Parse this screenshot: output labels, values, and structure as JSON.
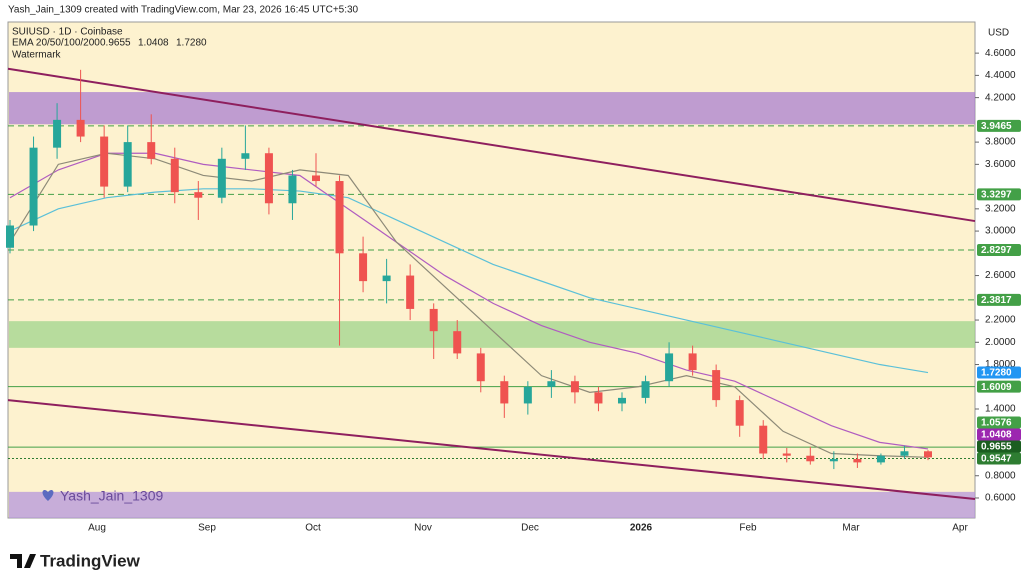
{
  "header": {
    "credit": "Yash_Jain_1309 created with TradingView.com, Mar 23, 2026 16:45 UTC+5:30",
    "logo": "TradingView"
  },
  "chart_data": {
    "type": "candlestick",
    "title": "SUIUSD · 1D · Coinbase",
    "subtitle": "Watermark",
    "currency": "USD",
    "watermark": "Yash_Jain_1309",
    "indicator": {
      "label": "EMA 20/50/100/200",
      "values": [
        "0.9655",
        "1.0408",
        "1.7280"
      ],
      "colors": [
        "#333333",
        "#9c27b0",
        "#26a6c8"
      ]
    },
    "up_color": "#26a69a",
    "down_color": "#ef5350",
    "xticks": [
      "Aug",
      "Sep",
      "Oct",
      "Nov",
      "Dec",
      "2026",
      "Feb",
      "Mar",
      "Apr"
    ],
    "ylim": [
      0.42,
      4.88
    ],
    "yticks": [
      {
        "value": 4.6,
        "label": "4.6000"
      },
      {
        "value": 4.4,
        "label": "4.4000"
      },
      {
        "value": 4.2,
        "label": "4.2000"
      },
      {
        "value": 3.8,
        "label": "3.8000"
      },
      {
        "value": 3.6,
        "label": "3.6000"
      },
      {
        "value": 3.2,
        "label": "3.2000"
      },
      {
        "value": 3.0,
        "label": "3.0000"
      },
      {
        "value": 2.6,
        "label": "2.6000"
      },
      {
        "value": 2.2,
        "label": "2.2000"
      },
      {
        "value": 2.0,
        "label": "2.0000"
      },
      {
        "value": 1.8,
        "label": "1.8000"
      },
      {
        "value": 1.4,
        "label": "1.4000"
      },
      {
        "value": 0.8,
        "label": "0.8000"
      },
      {
        "value": 0.6,
        "label": "0.6000"
      }
    ],
    "candles": [
      [
        2.85,
        3.1,
        2.8,
        3.05
      ],
      [
        3.05,
        3.85,
        3.0,
        3.75
      ],
      [
        3.75,
        4.15,
        3.65,
        4.0
      ],
      [
        4.0,
        4.45,
        3.8,
        3.85
      ],
      [
        3.85,
        3.95,
        3.3,
        3.4
      ],
      [
        3.4,
        3.95,
        3.35,
        3.8
      ],
      [
        3.8,
        4.05,
        3.6,
        3.65
      ],
      [
        3.65,
        3.75,
        3.25,
        3.35
      ],
      [
        3.35,
        3.45,
        3.1,
        3.3
      ],
      [
        3.3,
        3.75,
        3.25,
        3.65
      ],
      [
        3.65,
        3.95,
        3.55,
        3.7
      ],
      [
        3.7,
        3.75,
        3.15,
        3.25
      ],
      [
        3.25,
        3.55,
        3.1,
        3.5
      ],
      [
        3.5,
        3.7,
        3.4,
        3.45
      ],
      [
        3.45,
        3.5,
        1.97,
        2.8
      ],
      [
        2.8,
        2.95,
        2.45,
        2.55
      ],
      [
        2.55,
        2.75,
        2.35,
        2.6
      ],
      [
        2.6,
        2.7,
        2.2,
        2.3
      ],
      [
        2.3,
        2.35,
        1.85,
        2.1
      ],
      [
        2.1,
        2.2,
        1.85,
        1.9
      ],
      [
        1.9,
        1.95,
        1.55,
        1.65
      ],
      [
        1.65,
        1.7,
        1.32,
        1.45
      ],
      [
        1.45,
        1.65,
        1.35,
        1.6
      ],
      [
        1.6,
        1.75,
        1.5,
        1.65
      ],
      [
        1.65,
        1.7,
        1.45,
        1.55
      ],
      [
        1.55,
        1.6,
        1.38,
        1.45
      ],
      [
        1.45,
        1.55,
        1.38,
        1.5
      ],
      [
        1.5,
        1.7,
        1.45,
        1.65
      ],
      [
        1.65,
        2.0,
        1.6,
        1.9
      ],
      [
        1.9,
        1.97,
        1.7,
        1.75
      ],
      [
        1.75,
        1.8,
        1.42,
        1.48
      ],
      [
        1.48,
        1.52,
        1.15,
        1.25
      ],
      [
        1.25,
        1.3,
        0.95,
        1.0
      ],
      [
        1.0,
        1.05,
        0.92,
        0.98
      ],
      [
        0.98,
        1.06,
        0.9,
        0.93
      ],
      [
        0.93,
        1.02,
        0.86,
        0.95
      ],
      [
        0.95,
        1.0,
        0.87,
        0.92
      ],
      [
        0.92,
        1.0,
        0.9,
        0.98
      ],
      [
        0.98,
        1.07,
        0.95,
        1.02
      ],
      [
        1.02,
        1.03,
        0.94,
        0.9655
      ]
    ],
    "series": [
      {
        "name": "EMA 200",
        "color": "#5bc0d8",
        "values": [
          3.0,
          3.2,
          3.3,
          3.35,
          3.38,
          3.38,
          3.36,
          3.3,
          3.1,
          2.9,
          2.7,
          2.55,
          2.4,
          2.3,
          2.2,
          2.1,
          2.0,
          1.9,
          1.8,
          1.728
        ]
      },
      {
        "name": "EMA 100",
        "color": "#b05cc0",
        "values": [
          3.3,
          3.55,
          3.7,
          3.7,
          3.6,
          3.55,
          3.5,
          3.2,
          2.9,
          2.6,
          2.35,
          2.15,
          2.0,
          1.9,
          1.75,
          1.65,
          1.45,
          1.25,
          1.1,
          1.0408
        ]
      },
      {
        "name": "EMA 20",
        "color": "#8d8a78",
        "values": [
          2.9,
          3.6,
          3.7,
          3.65,
          3.5,
          3.45,
          3.55,
          3.5,
          2.9,
          2.5,
          2.1,
          1.7,
          1.55,
          1.6,
          1.7,
          1.6,
          1.2,
          1.0,
          0.98,
          0.9655
        ]
      }
    ],
    "zones": [
      {
        "top": 4.25,
        "bottom": 3.96,
        "color": "#a97fd0"
      },
      {
        "top": 2.19,
        "bottom": 1.95,
        "color": "#9fd48c"
      },
      {
        "top": 0.655,
        "bottom": 0.42,
        "color": "#b495dc"
      }
    ],
    "trend_lines": [
      {
        "start": 4.46,
        "end": 3.09,
        "color": "#8e1f5e"
      },
      {
        "start": 1.48,
        "end": 0.591,
        "color": "#8e1f5e"
      }
    ],
    "price_labels": [
      {
        "value": 3.9465,
        "label": "3.9465",
        "color": "#43a047",
        "line": "dashed"
      },
      {
        "value": 3.3297,
        "label": "3.3297",
        "color": "#43a047",
        "line": "dashed"
      },
      {
        "value": 2.8297,
        "label": "2.8297",
        "color": "#43a047",
        "line": "dashed"
      },
      {
        "value": 2.3817,
        "label": "2.3817",
        "color": "#43a047",
        "line": "dashed"
      },
      {
        "value": 1.728,
        "label": "1.7280",
        "color": "#2196f3",
        "line": "none"
      },
      {
        "value": 1.6009,
        "label": "1.6009",
        "color": "#43a047",
        "line": "solid"
      },
      {
        "value": 1.0576,
        "label": "1.0576",
        "color": "#43a047",
        "line": "solid"
      },
      {
        "value": 1.0408,
        "label": "1.0408",
        "color": "#9c27b0",
        "line": "none"
      },
      {
        "value": 0.9655,
        "label": "0.9655",
        "color": "#1b5e20",
        "line": "none"
      },
      {
        "value": 0.9547,
        "label": "0.9547",
        "color": "#2e7d32",
        "line": "dotted"
      }
    ]
  }
}
